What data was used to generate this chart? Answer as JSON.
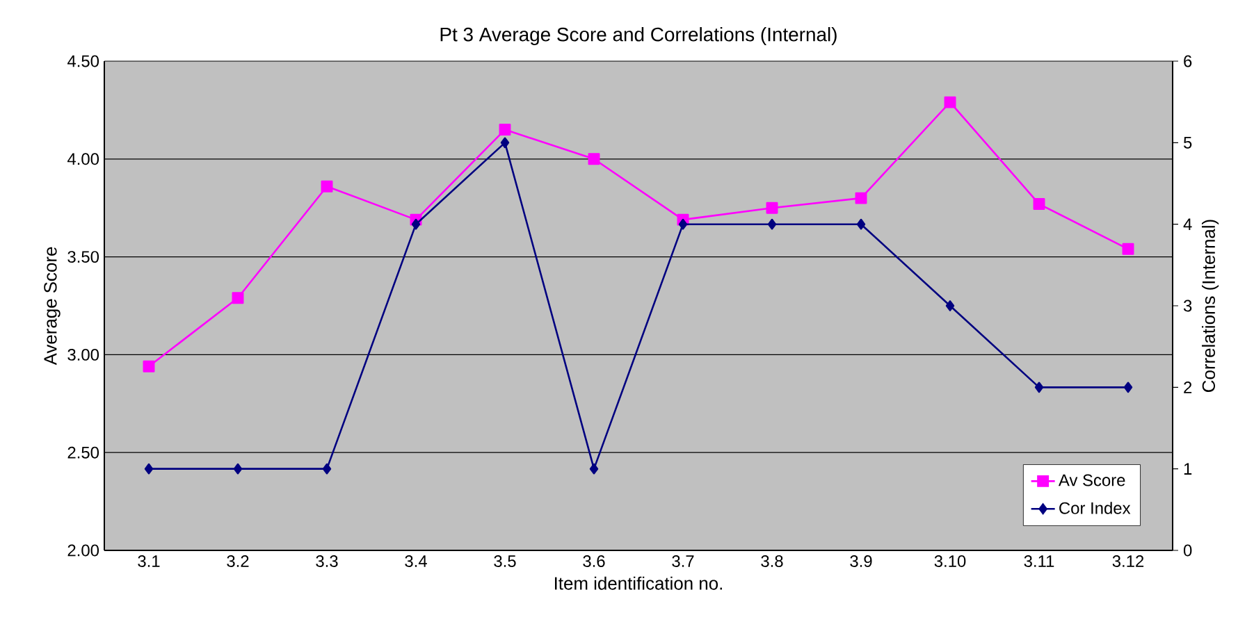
{
  "chart_data": {
    "type": "line",
    "title": "Pt 3 Average Score and Correlations (Internal)",
    "xlabel": "Item identification no.",
    "ylabel": "Average Score",
    "y2label": "Correlations (Internal)",
    "categories": [
      "3.1",
      "3.2",
      "3.3",
      "3.4",
      "3.5",
      "3.6",
      "3.7",
      "3.8",
      "3.9",
      "3.10",
      "3.11",
      "3.12"
    ],
    "series": [
      {
        "name": "Av Score",
        "color": "#ff00ff",
        "marker": "square",
        "values": [
          2.94,
          3.29,
          3.86,
          3.69,
          4.15,
          4.0,
          3.69,
          3.75,
          3.8,
          4.29,
          3.77,
          3.54
        ]
      },
      {
        "name": "Cor Index",
        "color": "#000080",
        "marker": "diamond",
        "axis": "y2",
        "values": [
          1,
          1,
          1,
          4,
          5,
          1,
          4,
          4,
          4,
          3,
          2,
          2
        ]
      }
    ],
    "ylim": [
      2,
      4.5
    ],
    "yticks": [
      {
        "value": 2,
        "label": "2.00"
      },
      {
        "value": 2.5,
        "label": "2.50"
      },
      {
        "value": 3,
        "label": "3.00"
      },
      {
        "value": 3.5,
        "label": "3.50"
      },
      {
        "value": 4,
        "label": "4.00"
      },
      {
        "value": 4.5,
        "label": "4.50"
      }
    ],
    "y2lim": [
      0,
      6
    ],
    "y2ticks": [
      0,
      1,
      2,
      3,
      4,
      5,
      6
    ],
    "grid": "y",
    "legend": "bottom right"
  }
}
